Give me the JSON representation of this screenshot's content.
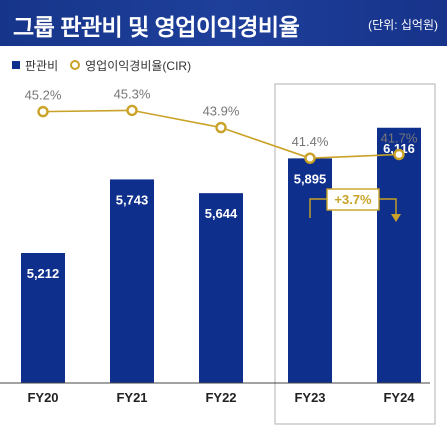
{
  "header": {
    "title": "그룹 판관비 및 영업이익경비율",
    "unit": "(단위: 십억원)"
  },
  "legend": {
    "bar_label": "판관비",
    "line_label": "영업이익경비율(CIR)"
  },
  "colors": {
    "header_bg": "#1a3a92",
    "bar": "#0f2f8c",
    "line": "#c9a227",
    "highlight_box": "#bdbdbd",
    "axis": "#444444"
  },
  "chart_data": {
    "type": "bar",
    "categories": [
      "FY20",
      "FY21",
      "FY22",
      "FY23",
      "FY24"
    ],
    "series": [
      {
        "name": "판관비",
        "type": "bar",
        "values": [
          5212,
          5743,
          5644,
          5895,
          6116
        ],
        "labels": [
          "5,212",
          "5,743",
          "5,644",
          "5,895",
          "6,116"
        ]
      },
      {
        "name": "영업이익경비율(CIR)",
        "type": "line",
        "values": [
          45.2,
          45.3,
          43.9,
          41.4,
          41.7
        ],
        "labels": [
          "45.2%",
          "45.3%",
          "43.9%",
          "41.4%",
          "41.7%"
        ]
      }
    ],
    "annotation": {
      "text": "+3.7%",
      "from": "FY23",
      "to": "FY24"
    },
    "highlight_categories": [
      "FY23",
      "FY24"
    ]
  }
}
